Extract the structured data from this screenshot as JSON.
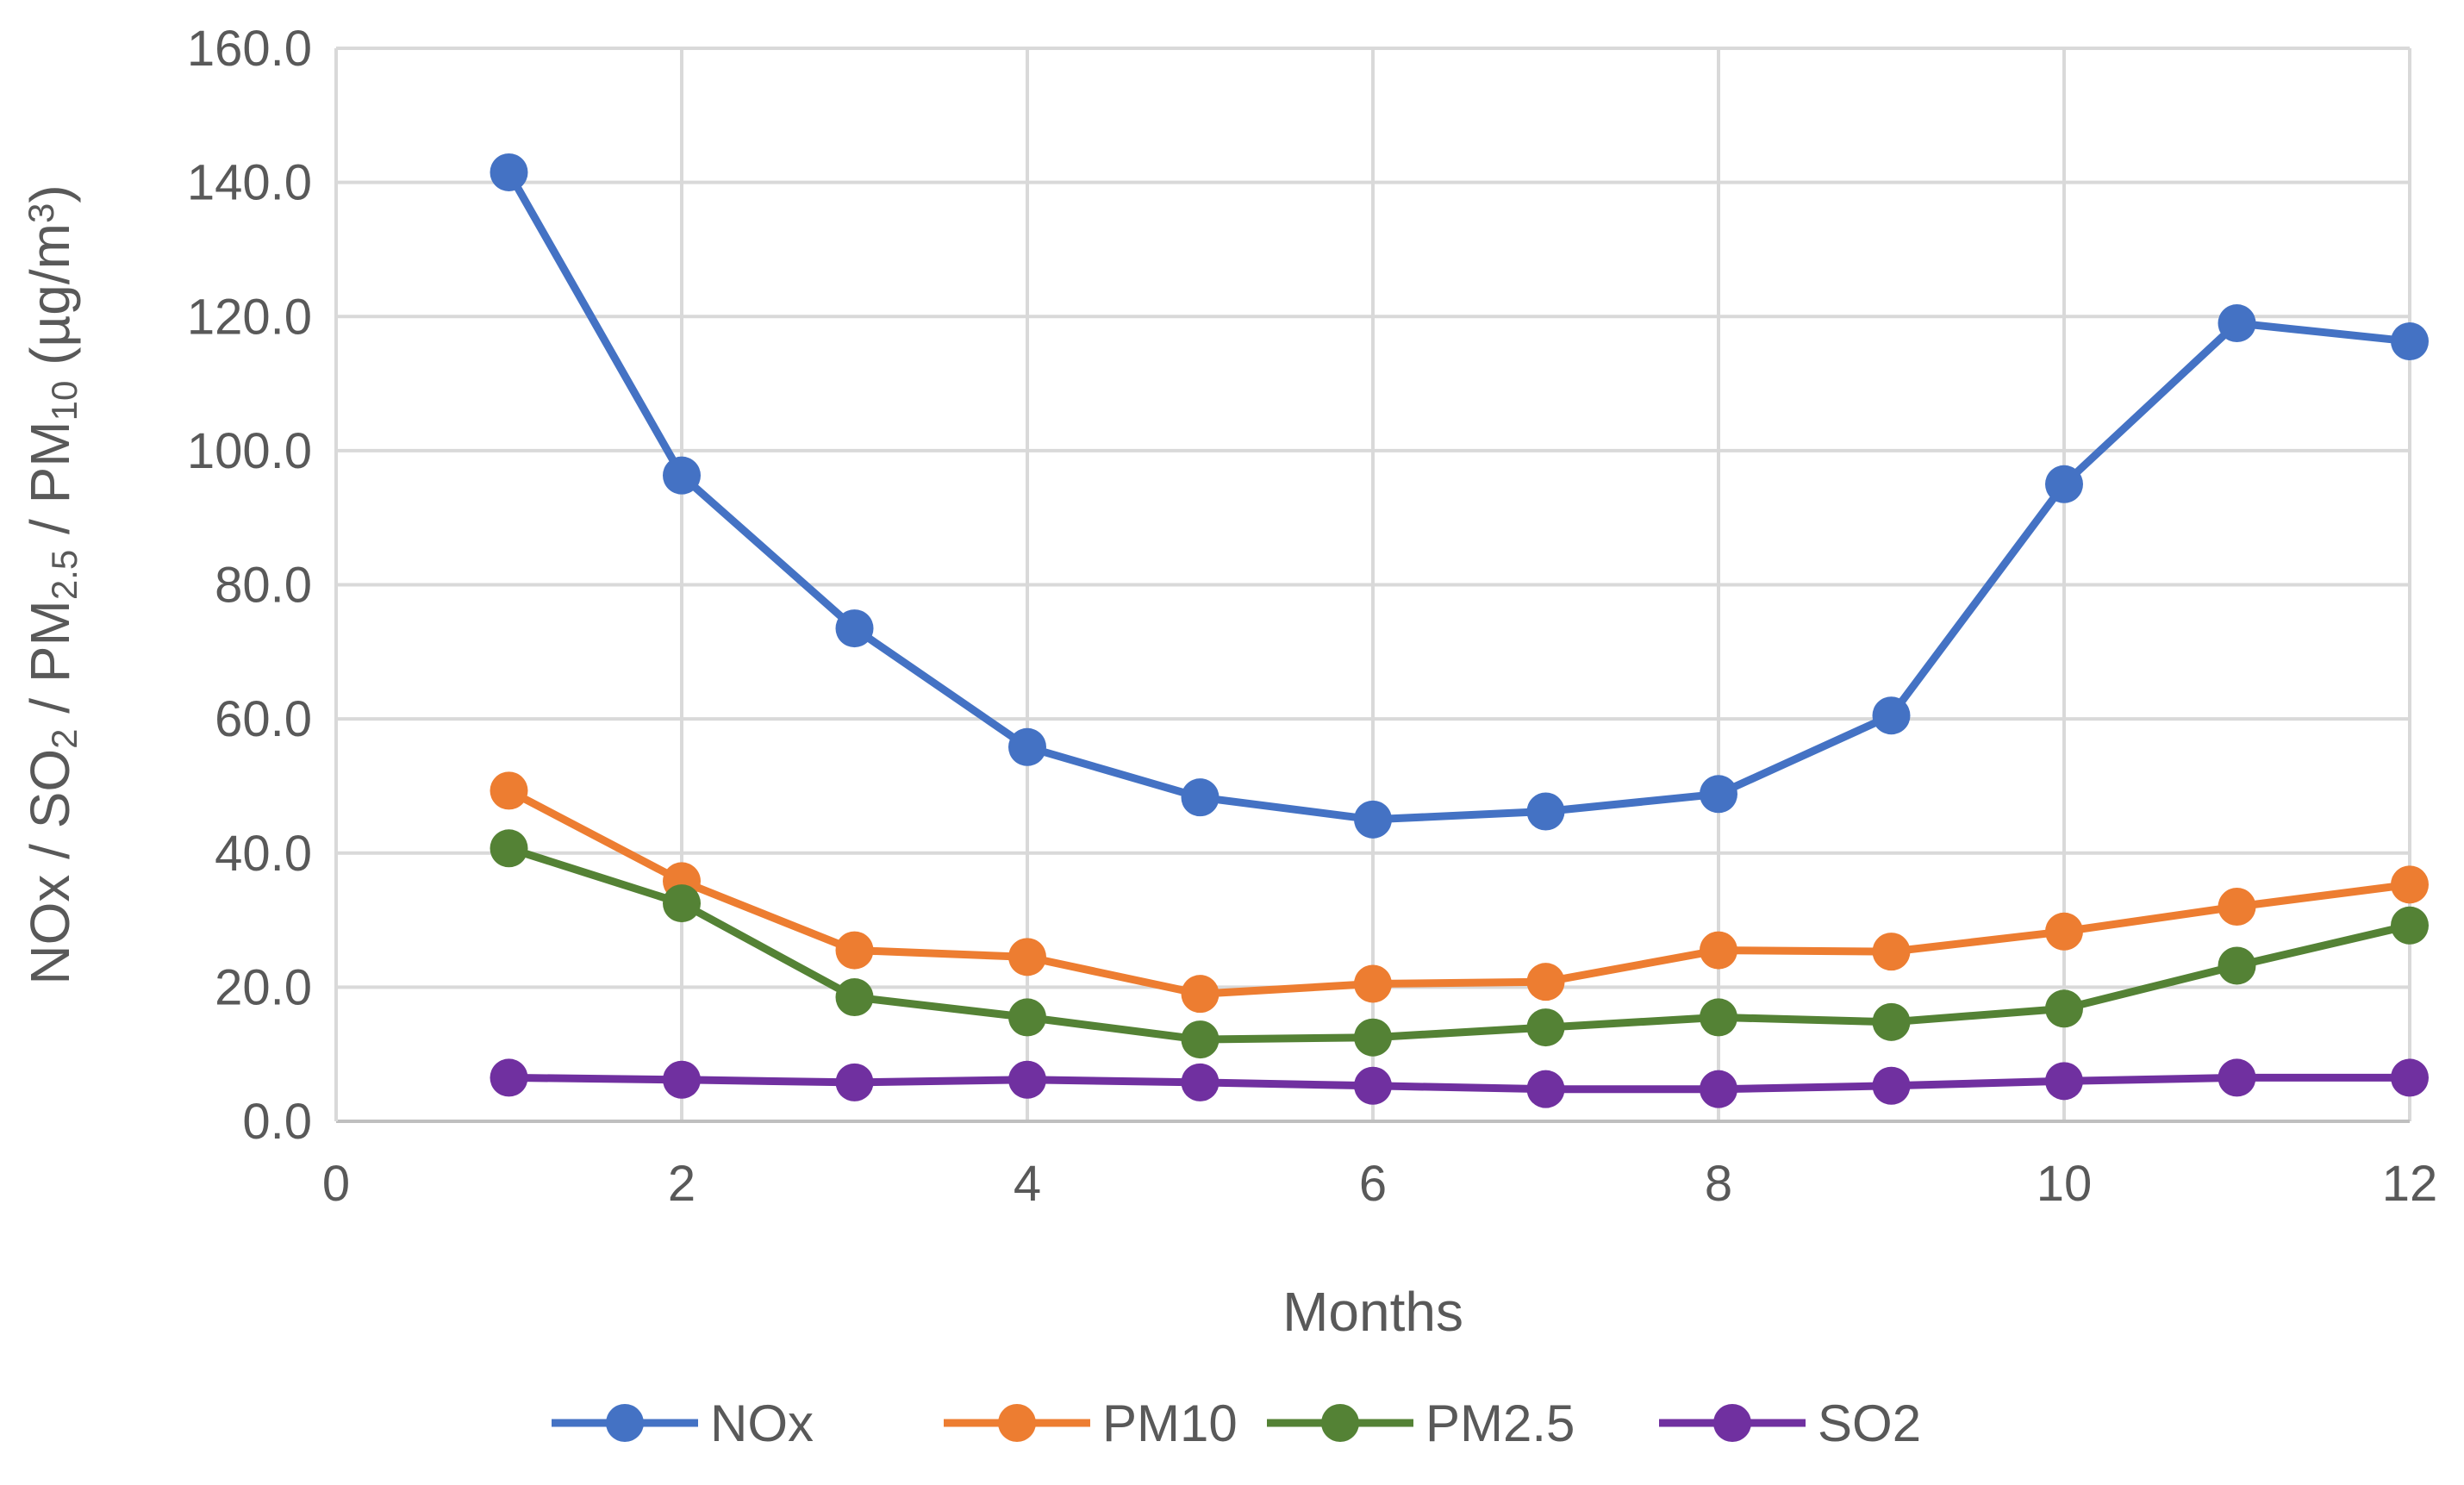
{
  "chart_data": {
    "type": "line",
    "title": "",
    "xlabel": "Months",
    "ylabel": {
      "parts": [
        {
          "text": "NOx / SO",
          "sub": false
        },
        {
          "text": "2",
          "sub": true
        },
        {
          "text": " / PM",
          "sub": false
        },
        {
          "text": "2.5",
          "sub": true
        },
        {
          "text": " / PM",
          "sub": false
        },
        {
          "text": "10",
          "sub": true
        },
        {
          "text": " (µg/m",
          "sub": false
        },
        {
          "text": "3",
          "sup": true
        },
        {
          "text": ")",
          "sub": false
        }
      ]
    },
    "xlim": [
      0,
      12
    ],
    "ylim": [
      0,
      160
    ],
    "xticks": [
      0,
      2,
      4,
      6,
      8,
      10,
      12
    ],
    "xtick_labels": [
      "0",
      "2",
      "4",
      "6",
      "8",
      "10",
      "12"
    ],
    "yticks": [
      0,
      20,
      40,
      60,
      80,
      100,
      120,
      140,
      160
    ],
    "ytick_labels": [
      "0.0",
      "20.0",
      "40.0",
      "60.0",
      "80.0",
      "100.0",
      "120.0",
      "140.0",
      "160.0"
    ],
    "grid": true,
    "legend_position": "bottom",
    "x": [
      1,
      2,
      3,
      4,
      5,
      6,
      7,
      8,
      9,
      10,
      11,
      12
    ],
    "series": [
      {
        "name": "NOx",
        "color": "#4472C4",
        "values": [
          141.5,
          96.3,
          73.5,
          55.8,
          48.3,
          45.0,
          46.2,
          48.8,
          60.5,
          95.0,
          119.0,
          116.3
        ]
      },
      {
        "name": "PM10",
        "color": "#ED7D31",
        "values": [
          49.3,
          35.8,
          25.5,
          24.5,
          19.0,
          20.5,
          20.8,
          25.5,
          25.3,
          28.3,
          32.0,
          35.3
        ]
      },
      {
        "name": "PM2.5",
        "color": "#548235",
        "values": [
          40.7,
          32.5,
          18.5,
          15.5,
          12.2,
          12.5,
          14.0,
          15.5,
          14.8,
          16.8,
          23.2,
          29.2
        ]
      },
      {
        "name": "SO2",
        "color": "#7030A0",
        "values": [
          6.5,
          6.2,
          5.8,
          6.2,
          5.8,
          5.3,
          4.8,
          4.8,
          5.3,
          6.0,
          6.5,
          6.5
        ]
      }
    ]
  }
}
